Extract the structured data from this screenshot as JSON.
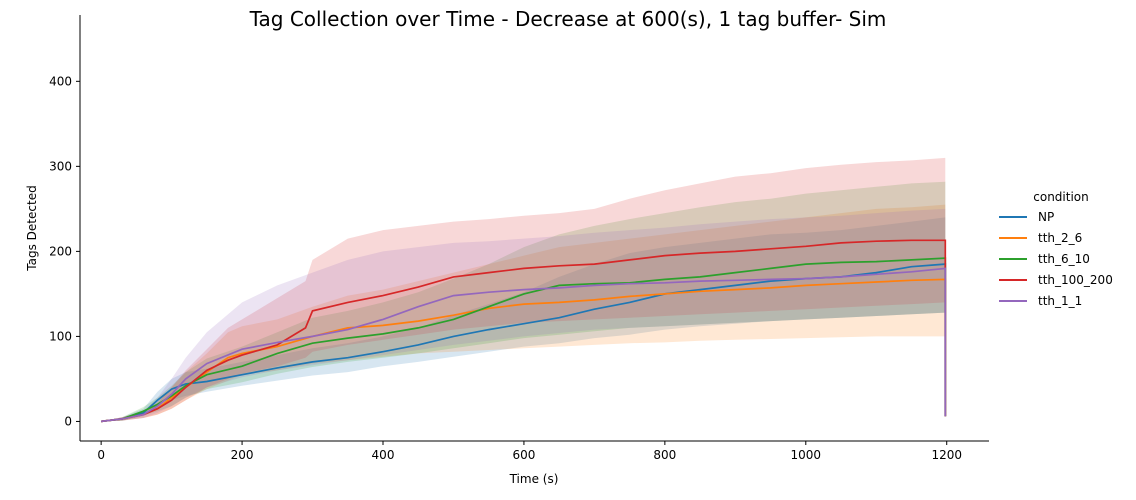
{
  "chart_data": {
    "type": "line",
    "title": "Tag Collection over Time - Decrease at 600(s), 1 tag buffer- Sim",
    "xlabel": "Time (s)",
    "ylabel": "Tags Detected",
    "xlim": [
      -30,
      1260
    ],
    "ylim": [
      -23,
      478
    ],
    "xticks": [
      0,
      200,
      400,
      600,
      800,
      1000,
      1200
    ],
    "yticks": [
      0,
      100,
      200,
      300,
      400
    ],
    "grid": false,
    "legend": {
      "title": "condition",
      "position": "right"
    },
    "series": [
      {
        "name": "NP",
        "color": "#1f77b4",
        "x": [
          0,
          30,
          60,
          80,
          100,
          120,
          150,
          200,
          250,
          300,
          350,
          400,
          450,
          500,
          550,
          600,
          650,
          700,
          750,
          800,
          850,
          900,
          950,
          1000,
          1050,
          1100,
          1150,
          1198
        ],
        "y": [
          0,
          3,
          10,
          25,
          38,
          44,
          47,
          55,
          63,
          70,
          75,
          82,
          90,
          100,
          108,
          115,
          122,
          132,
          140,
          150,
          155,
          160,
          165,
          168,
          170,
          175,
          182,
          185
        ],
        "lower": [
          0,
          1,
          6,
          15,
          25,
          30,
          35,
          42,
          48,
          54,
          58,
          65,
          70,
          76,
          82,
          88,
          92,
          98,
          102,
          108,
          112,
          115,
          118,
          120,
          122,
          124,
          126,
          128
        ],
        "upper": [
          0,
          5,
          15,
          35,
          50,
          58,
          62,
          70,
          78,
          86,
          92,
          100,
          110,
          125,
          138,
          152,
          170,
          185,
          198,
          205,
          210,
          215,
          220,
          222,
          225,
          230,
          235,
          240
        ]
      },
      {
        "name": "tth_2_6",
        "color": "#ff7f0e",
        "x": [
          0,
          30,
          60,
          80,
          100,
          120,
          150,
          180,
          200,
          250,
          300,
          350,
          400,
          450,
          500,
          550,
          600,
          650,
          700,
          750,
          800,
          850,
          900,
          950,
          1000,
          1050,
          1100,
          1150,
          1198
        ],
        "y": [
          0,
          3,
          8,
          15,
          28,
          40,
          58,
          75,
          80,
          88,
          100,
          110,
          113,
          118,
          125,
          133,
          138,
          140,
          143,
          147,
          150,
          153,
          155,
          157,
          160,
          162,
          164,
          166,
          167
        ],
        "lower": [
          0,
          1,
          4,
          8,
          15,
          25,
          38,
          48,
          55,
          60,
          68,
          72,
          76,
          80,
          82,
          84,
          86,
          88,
          90,
          92,
          93,
          95,
          96,
          97,
          98,
          99,
          100,
          100,
          100
        ],
        "upper": [
          0,
          5,
          12,
          22,
          40,
          58,
          80,
          105,
          112,
          120,
          135,
          148,
          155,
          165,
          175,
          185,
          195,
          205,
          210,
          215,
          220,
          225,
          230,
          235,
          240,
          245,
          250,
          252,
          255
        ]
      },
      {
        "name": "tth_6_10",
        "color": "#2ca02c",
        "x": [
          0,
          30,
          60,
          80,
          100,
          120,
          150,
          200,
          250,
          300,
          350,
          400,
          450,
          500,
          550,
          600,
          650,
          700,
          750,
          800,
          850,
          900,
          950,
          1000,
          1050,
          1100,
          1150,
          1198
        ],
        "y": [
          0,
          3,
          12,
          20,
          30,
          42,
          55,
          65,
          80,
          92,
          98,
          103,
          110,
          120,
          135,
          150,
          160,
          162,
          163,
          167,
          170,
          175,
          180,
          185,
          187,
          188,
          190,
          192
        ],
        "lower": [
          0,
          1,
          7,
          12,
          18,
          28,
          38,
          46,
          56,
          64,
          70,
          75,
          80,
          86,
          92,
          98,
          102,
          106,
          110,
          112,
          114,
          116,
          118,
          120,
          122,
          124,
          126,
          128
        ],
        "upper": [
          0,
          5,
          17,
          28,
          42,
          58,
          74,
          88,
          105,
          122,
          130,
          140,
          152,
          168,
          185,
          205,
          220,
          230,
          238,
          245,
          252,
          258,
          262,
          268,
          272,
          276,
          280,
          282
        ]
      },
      {
        "name": "tth_100_200",
        "color": "#d62728",
        "x": [
          0,
          30,
          60,
          80,
          100,
          120,
          150,
          180,
          200,
          250,
          290,
          300,
          350,
          400,
          450,
          500,
          550,
          600,
          650,
          700,
          750,
          800,
          850,
          900,
          950,
          1000,
          1050,
          1100,
          1150,
          1198
        ],
        "y": [
          0,
          3,
          8,
          15,
          25,
          40,
          60,
          72,
          78,
          90,
          110,
          130,
          140,
          148,
          158,
          170,
          175,
          180,
          183,
          185,
          190,
          195,
          198,
          200,
          203,
          206,
          210,
          212,
          213,
          213
        ],
        "lower": [
          0,
          1,
          4,
          8,
          15,
          25,
          40,
          50,
          56,
          65,
          75,
          82,
          90,
          96,
          102,
          108,
          112,
          116,
          118,
          120,
          122,
          124,
          126,
          128,
          130,
          132,
          134,
          136,
          138,
          140
        ],
        "upper": [
          0,
          5,
          12,
          22,
          40,
          60,
          85,
          110,
          120,
          145,
          165,
          190,
          215,
          225,
          230,
          235,
          238,
          242,
          245,
          250,
          262,
          272,
          280,
          288,
          292,
          298,
          302,
          305,
          307,
          310
        ]
      },
      {
        "name": "tth_1_1",
        "color": "#9467bd",
        "x": [
          0,
          30,
          60,
          80,
          100,
          120,
          150,
          200,
          250,
          300,
          350,
          400,
          450,
          500,
          550,
          600,
          650,
          700,
          750,
          800,
          850,
          900,
          950,
          1000,
          1050,
          1100,
          1150,
          1198
        ],
        "y": [
          0,
          3,
          8,
          18,
          32,
          50,
          68,
          85,
          93,
          100,
          108,
          120,
          135,
          148,
          152,
          155,
          157,
          160,
          162,
          163,
          165,
          166,
          167,
          168,
          170,
          173,
          176,
          180
        ],
        "lower": [
          0,
          1,
          4,
          10,
          18,
          28,
          40,
          52,
          60,
          66,
          72,
          78,
          84,
          90,
          95,
          100,
          104,
          108,
          110,
          112,
          114,
          116,
          118,
          120,
          122,
          124,
          126,
          128
        ],
        "upper": [
          0,
          5,
          12,
          28,
          50,
          75,
          105,
          140,
          160,
          175,
          190,
          200,
          205,
          210,
          212,
          215,
          218,
          222,
          225,
          228,
          232,
          235,
          238,
          240,
          242,
          245,
          248,
          250
        ]
      }
    ]
  }
}
